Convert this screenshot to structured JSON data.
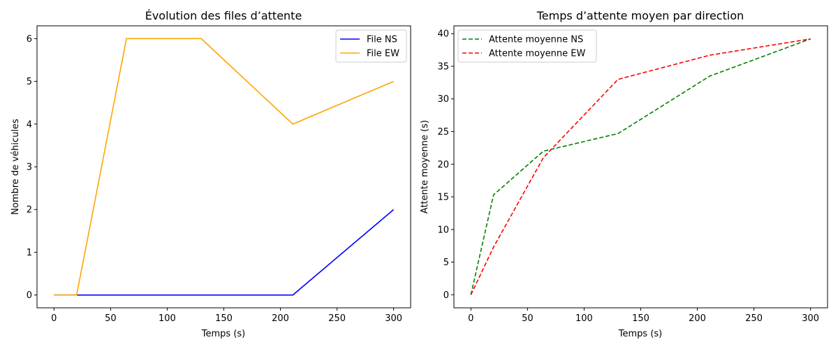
{
  "chart_data": [
    {
      "type": "line",
      "title": "Évolution des files d’attente",
      "xlabel": "Temps (s)",
      "ylabel": "Nombre de véhicules",
      "xlim": [
        -15,
        315
      ],
      "ylim": [
        -0.3,
        6.3
      ],
      "xticks": [
        0,
        50,
        100,
        150,
        200,
        250,
        300
      ],
      "yticks": [
        0,
        1,
        2,
        3,
        4,
        5,
        6
      ],
      "grid": false,
      "legend": "top-right",
      "series": [
        {
          "name": "File NS",
          "color": "#0000ff",
          "dash": "solid",
          "x": [
            0,
            20,
            64,
            130,
            211,
            300
          ],
          "y": [
            0,
            0,
            0,
            0,
            0,
            2
          ]
        },
        {
          "name": "File EW",
          "color": "#ffa500",
          "dash": "solid",
          "x": [
            0,
            20,
            64,
            130,
            211,
            300
          ],
          "y": [
            0,
            0,
            6,
            6,
            4,
            5
          ]
        }
      ]
    },
    {
      "type": "line",
      "title": "Temps d’attente moyen par direction",
      "xlabel": "Temps (s)",
      "ylabel": "Attente moyenne (s)",
      "xlim": [
        -15,
        315
      ],
      "ylim": [
        -2.0,
        41.2
      ],
      "xticks": [
        0,
        50,
        100,
        150,
        200,
        250,
        300
      ],
      "yticks": [
        0,
        5,
        10,
        15,
        20,
        25,
        30,
        35,
        40
      ],
      "grid": false,
      "legend": "top-left",
      "series": [
        {
          "name": "Attente moyenne NS",
          "color": "#008000",
          "dash": "dashed",
          "x": [
            0,
            20,
            64,
            130,
            211,
            300
          ],
          "y": [
            0,
            15.3,
            22.0,
            24.7,
            33.5,
            39.2
          ]
        },
        {
          "name": "Attente moyenne EW",
          "color": "#ff0000",
          "dash": "dashed",
          "x": [
            0,
            20,
            64,
            130,
            211,
            300
          ],
          "y": [
            0,
            7.3,
            21.0,
            33.0,
            36.7,
            39.2
          ]
        }
      ]
    }
  ]
}
